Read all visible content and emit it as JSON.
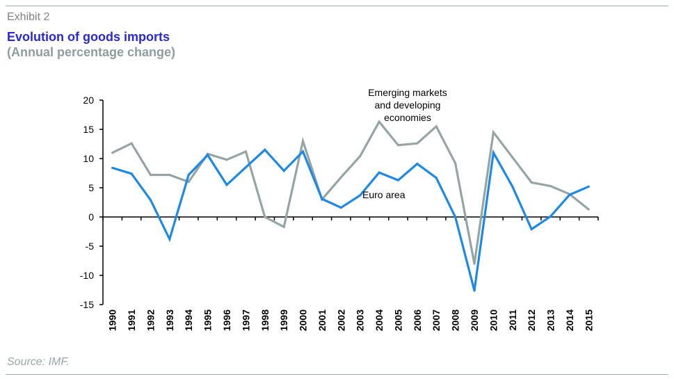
{
  "header": {
    "exhibit": "Exhibit 2",
    "title": "Evolution of goods imports",
    "subtitle": "(Annual percentage change)"
  },
  "footer": {
    "source": "Source: IMF."
  },
  "colors": {
    "euro_area": "#1e88e5",
    "emerging": "#95a5a3",
    "title": "#2828d6"
  },
  "chart_data": {
    "type": "line",
    "title": "Evolution of goods imports",
    "subtitle": "(Annual percentage change)",
    "categories": [
      "1990",
      "1991",
      "1992",
      "1993",
      "1994",
      "1995",
      "1996",
      "1997",
      "1998",
      "1999",
      "2000",
      "2001",
      "2002",
      "2003",
      "2004",
      "2005",
      "2006",
      "2007",
      "2008",
      "2009",
      "2010",
      "2011",
      "2012",
      "2013",
      "2014",
      "2015"
    ],
    "ylim": [
      -15,
      20
    ],
    "yticks": [
      -15,
      -10,
      -5,
      0,
      5,
      10,
      15,
      20
    ],
    "ytick_labels": [
      "-15",
      "-10",
      "-5",
      "0",
      "5",
      "10",
      "15",
      "20"
    ],
    "grid": false,
    "series": [
      {
        "name": "Emerging markets and developing economies",
        "label_lines": [
          "Emerging markets",
          "and developing",
          "economies"
        ],
        "color": "#95a5a3",
        "values": [
          11.0,
          12.6,
          7.2,
          7.2,
          6.0,
          10.8,
          9.8,
          11.2,
          0.0,
          -1.7,
          13.0,
          3.0,
          6.8,
          10.4,
          16.3,
          12.3,
          12.6,
          15.5,
          9.2,
          -8.0,
          14.5,
          10.2,
          5.9,
          5.3,
          3.9,
          1.3
        ]
      },
      {
        "name": "Euro area",
        "label_lines": [
          "Euro area"
        ],
        "color": "#1e88e5",
        "values": [
          8.4,
          7.4,
          2.9,
          -3.8,
          7.2,
          10.6,
          5.5,
          8.5,
          11.5,
          7.9,
          11.2,
          3.1,
          1.6,
          3.7,
          7.6,
          6.3,
          9.1,
          6.7,
          0.0,
          -12.6,
          11.0,
          5.2,
          -2.1,
          0.1,
          3.8,
          5.2
        ]
      }
    ]
  }
}
